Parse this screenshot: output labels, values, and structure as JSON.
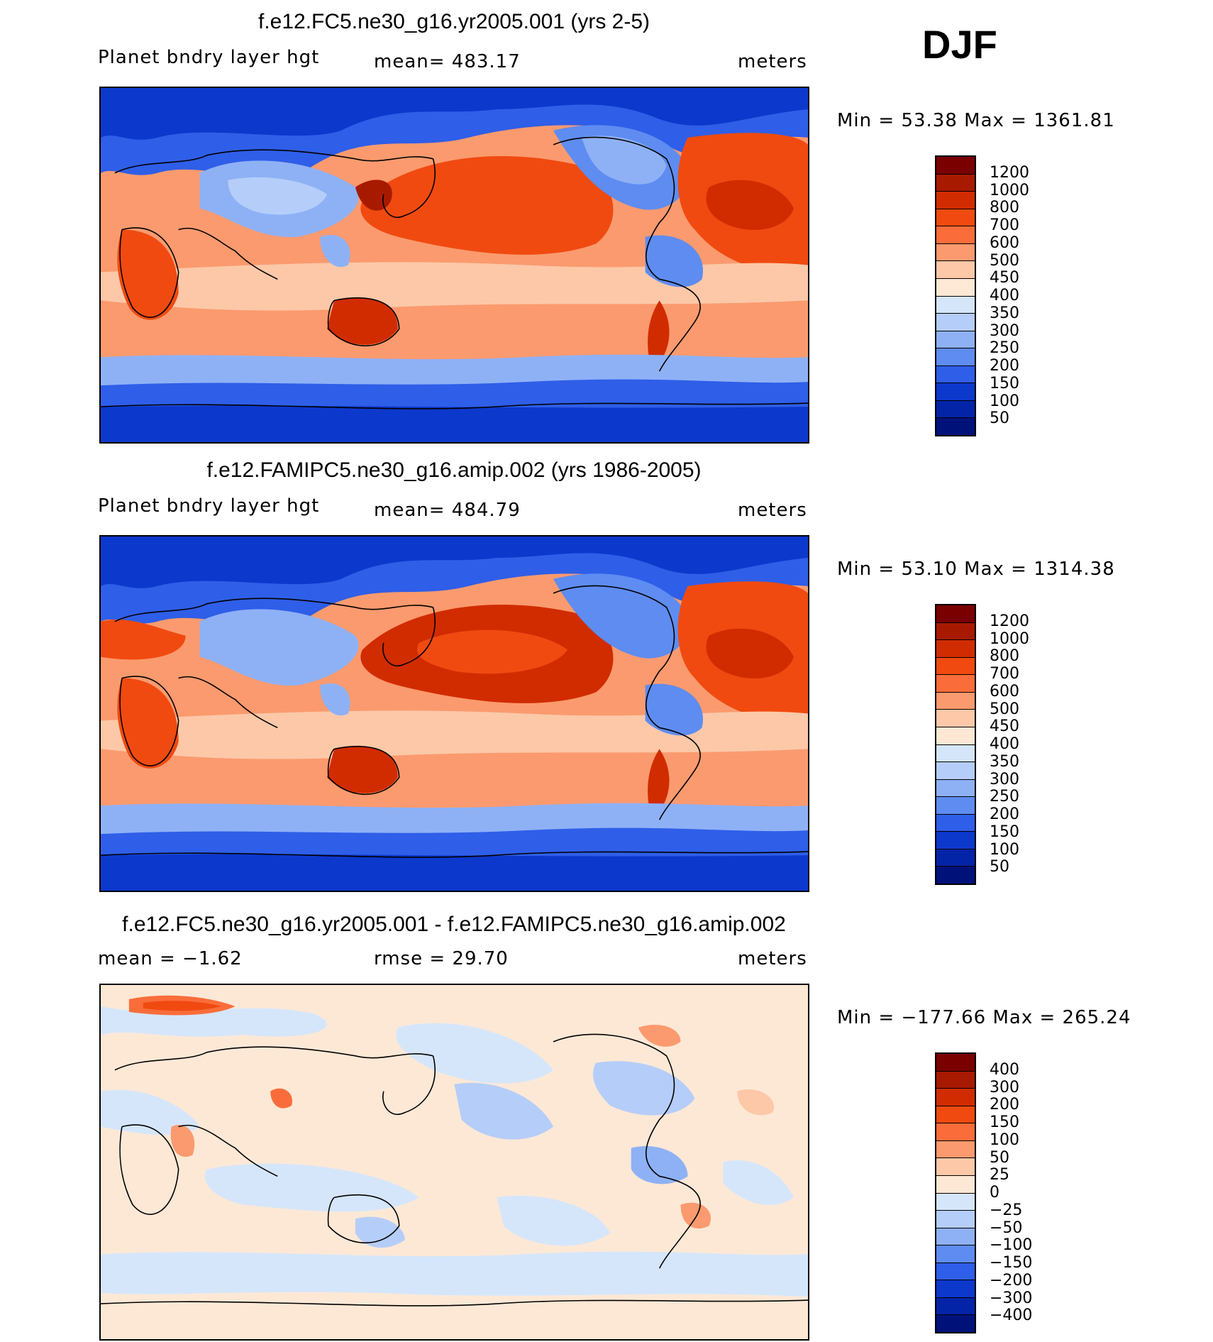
{
  "season": "DJF",
  "panels": [
    {
      "title": "f.e12.FC5.ne30_g16.yr2005.001 (yrs 2-5)",
      "left_label": "Planet bndry layer hgt",
      "center_label": "mean= 483.17",
      "right_label": "meters",
      "minmax": "Min =   53.38 Max = 1361.81",
      "colorbar": {
        "colors": [
          "#7a0000",
          "#a81a00",
          "#d12c00",
          "#f04a10",
          "#fa6d3a",
          "#fb9a6e",
          "#fcc8a8",
          "#fde8d6",
          "#d5e6fb",
          "#b5cdf9",
          "#8eb1f6",
          "#5e8cf1",
          "#2f5ee8",
          "#0d38cc",
          "#0424a8",
          "#00127a"
        ],
        "labels": [
          "1200",
          "1000",
          "800",
          "700",
          "600",
          "500",
          "450",
          "400",
          "350",
          "300",
          "250",
          "200",
          "150",
          "100",
          "50"
        ]
      }
    },
    {
      "title": "f.e12.FAMIPC5.ne30_g16.amip.002 (yrs 1986-2005)",
      "left_label": "Planet bndry layer hgt",
      "center_label": "mean= 484.79",
      "right_label": "meters",
      "minmax": "Min =   53.10 Max = 1314.38",
      "colorbar": {
        "colors": [
          "#7a0000",
          "#a81a00",
          "#d12c00",
          "#f04a10",
          "#fa6d3a",
          "#fb9a6e",
          "#fcc8a8",
          "#fde8d6",
          "#d5e6fb",
          "#b5cdf9",
          "#8eb1f6",
          "#5e8cf1",
          "#2f5ee8",
          "#0d38cc",
          "#0424a8",
          "#00127a"
        ],
        "labels": [
          "1200",
          "1000",
          "800",
          "700",
          "600",
          "500",
          "450",
          "400",
          "350",
          "300",
          "250",
          "200",
          "150",
          "100",
          "50"
        ]
      }
    },
    {
      "title": "f.e12.FC5.ne30_g16.yr2005.001 - f.e12.FAMIPC5.ne30_g16.amip.002",
      "left_label": "mean =   −1.62",
      "center_label": "rmse =   29.70",
      "right_label": "meters",
      "minmax": "Min = −177.66 Max = 265.24",
      "colorbar": {
        "colors": [
          "#7a0000",
          "#a81a00",
          "#d12c00",
          "#f04a10",
          "#fa6d3a",
          "#fb9a6e",
          "#fcc8a8",
          "#fde8d6",
          "#d5e6fb",
          "#b5cdf9",
          "#8eb1f6",
          "#5e8cf1",
          "#2f5ee8",
          "#0d38cc",
          "#0424a8",
          "#00127a"
        ],
        "labels": [
          "400",
          "300",
          "200",
          "150",
          "100",
          "50",
          "25",
          "0",
          "−25",
          "−50",
          "−100",
          "−150",
          "−200",
          "−300",
          "−400"
        ]
      }
    }
  ]
}
